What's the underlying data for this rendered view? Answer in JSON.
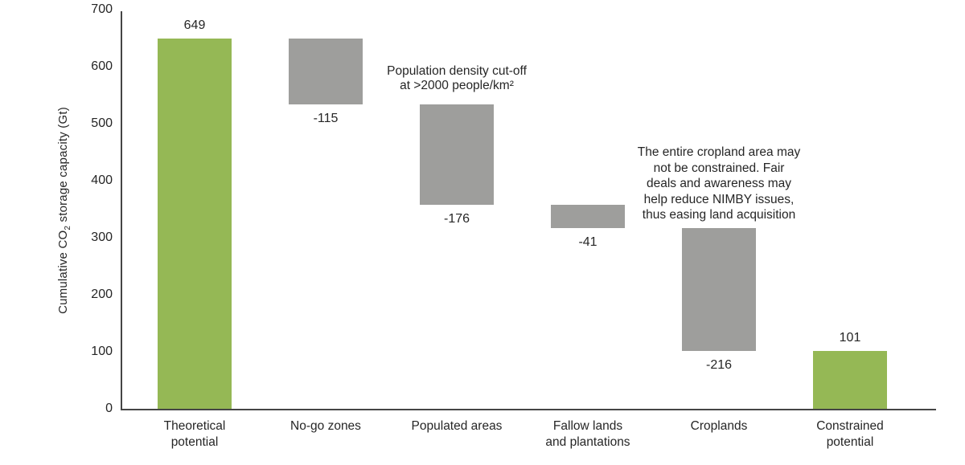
{
  "chart_data": {
    "type": "bar",
    "subtype": "waterfall",
    "title": "",
    "xlabel": "",
    "ylabel": {
      "prefix": "Cumulative CO",
      "sub": "2",
      "suffix": " storage capacity (Gt)"
    },
    "ylim": [
      0,
      700
    ],
    "yticks": [
      0,
      100,
      200,
      300,
      400,
      500,
      600,
      700
    ],
    "grid": false,
    "legend": false,
    "steps": [
      {
        "category_lines": [
          "Theoretical",
          "potential"
        ],
        "start": 0,
        "end": 649,
        "delta": 649,
        "value_label": "649",
        "kind": "total"
      },
      {
        "category_lines": [
          "No-go zones"
        ],
        "start": 649,
        "end": 534,
        "delta": -115,
        "value_label": "-115",
        "kind": "decrease"
      },
      {
        "category_lines": [
          "Populated areas"
        ],
        "start": 534,
        "end": 358,
        "delta": -176,
        "value_label": "-176",
        "kind": "decrease"
      },
      {
        "category_lines": [
          "Fallow lands",
          "and plantations"
        ],
        "start": 358,
        "end": 317,
        "delta": -41,
        "value_label": "-41",
        "kind": "decrease"
      },
      {
        "category_lines": [
          "Croplands"
        ],
        "start": 317,
        "end": 101,
        "delta": -216,
        "value_label": "-216",
        "kind": "decrease"
      },
      {
        "category_lines": [
          "Constrained",
          "potential"
        ],
        "start": 0,
        "end": 101,
        "delta": 101,
        "value_label": "101",
        "kind": "total"
      }
    ],
    "annotations": [
      {
        "lines": [
          "Population density cut-off",
          "at >2000 people/km²"
        ],
        "anchor_step": 2
      },
      {
        "lines": [
          "The entire cropland area may",
          "not be constrained. Fair",
          "deals and awareness may",
          "help reduce NIMBY issues,",
          "thus easing land acquisition"
        ],
        "anchor_step": 4
      }
    ],
    "colors": {
      "total_bar": "#95b855",
      "decrease_bar": "#9e9e9c",
      "axis": "#454545",
      "text": "#262626"
    }
  }
}
